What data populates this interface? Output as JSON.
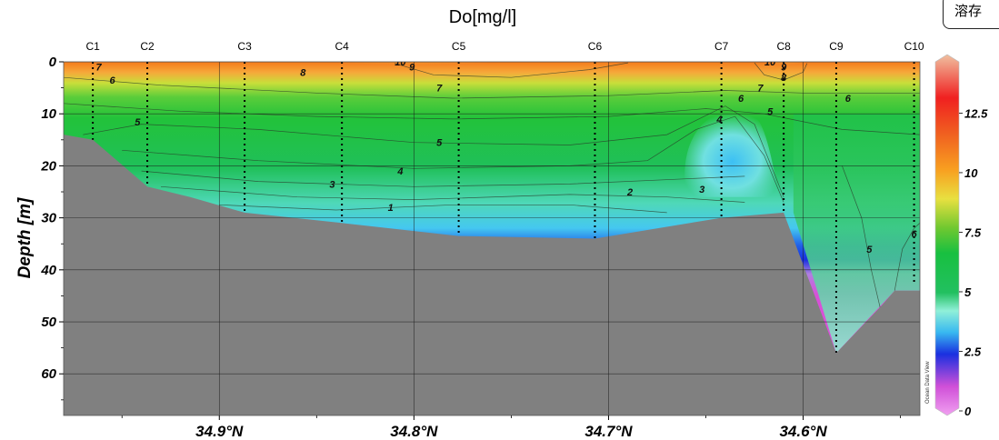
{
  "chart_data": {
    "type": "heatmap",
    "title": "Do[mg/l]",
    "xlabel": "",
    "ylabel": "Depth [m]",
    "x_ticks": [
      "34.9°N",
      "34.8°N",
      "34.7°N",
      "34.6°N"
    ],
    "x_tick_values": [
      34.9,
      34.8,
      34.7,
      34.6
    ],
    "xlim": [
      34.98,
      34.54
    ],
    "y_ticks": [
      "0",
      "10",
      "20",
      "30",
      "40",
      "50",
      "60"
    ],
    "y_tick_values": [
      0,
      10,
      20,
      30,
      40,
      50,
      60
    ],
    "ylim": [
      0,
      68
    ],
    "y_inverted": true,
    "grid": true,
    "stations": [
      {
        "name": "C1",
        "lat": 34.965,
        "depth": 15
      },
      {
        "name": "C2",
        "lat": 34.937,
        "depth": 24
      },
      {
        "name": "C3",
        "lat": 34.887,
        "depth": 29
      },
      {
        "name": "C4",
        "lat": 34.837,
        "depth": 31
      },
      {
        "name": "C5",
        "lat": 34.777,
        "depth": 33
      },
      {
        "name": "C6",
        "lat": 34.707,
        "depth": 34
      },
      {
        "name": "C7",
        "lat": 34.642,
        "depth": 30
      },
      {
        "name": "C8",
        "lat": 34.61,
        "depth": 29
      },
      {
        "name": "C9",
        "lat": 34.583,
        "depth": 56
      },
      {
        "name": "C10",
        "lat": 34.543,
        "depth": 43
      }
    ],
    "bottom_profile": [
      [
        34.98,
        14
      ],
      [
        34.965,
        15
      ],
      [
        34.937,
        24
      ],
      [
        34.915,
        26
      ],
      [
        34.887,
        29
      ],
      [
        34.837,
        31
      ],
      [
        34.777,
        33.5
      ],
      [
        34.707,
        34
      ],
      [
        34.642,
        30
      ],
      [
        34.61,
        29
      ],
      [
        34.583,
        56
      ],
      [
        34.56,
        47
      ],
      [
        34.553,
        44
      ],
      [
        34.54,
        44
      ]
    ],
    "contour_labels": [
      {
        "text": "7",
        "lat": 34.962,
        "depth": 1
      },
      {
        "text": "6",
        "lat": 34.955,
        "depth": 3.5
      },
      {
        "text": "8",
        "lat": 34.857,
        "depth": 2
      },
      {
        "text": "10",
        "lat": 34.807,
        "depth": 0
      },
      {
        "text": "9",
        "lat": 34.801,
        "depth": 1
      },
      {
        "text": "7",
        "lat": 34.787,
        "depth": 5
      },
      {
        "text": "5",
        "lat": 34.942,
        "depth": 11.5
      },
      {
        "text": "5",
        "lat": 34.787,
        "depth": 15.5
      },
      {
        "text": "4",
        "lat": 34.807,
        "depth": 21
      },
      {
        "text": "3",
        "lat": 34.842,
        "depth": 23.5
      },
      {
        "text": "1",
        "lat": 34.812,
        "depth": 28
      },
      {
        "text": "2",
        "lat": 34.689,
        "depth": 25
      },
      {
        "text": "3",
        "lat": 34.652,
        "depth": 24.5
      },
      {
        "text": "4",
        "lat": 34.643,
        "depth": 11
      },
      {
        "text": "10",
        "lat": 34.617,
        "depth": 0
      },
      {
        "text": "9",
        "lat": 34.61,
        "depth": 1
      },
      {
        "text": "8",
        "lat": 34.61,
        "depth": 3
      },
      {
        "text": "7",
        "lat": 34.622,
        "depth": 5
      },
      {
        "text": "6",
        "lat": 34.632,
        "depth": 7
      },
      {
        "text": "5",
        "lat": 34.617,
        "depth": 9.5
      },
      {
        "text": "6",
        "lat": 34.577,
        "depth": 7
      },
      {
        "text": "5",
        "lat": 34.566,
        "depth": 36
      },
      {
        "text": "6",
        "lat": 34.543,
        "depth": 33
      }
    ],
    "colorbar": {
      "range": [
        0,
        14.5
      ],
      "ticks": [
        "0",
        "2.5",
        "5",
        "7.5",
        "10",
        "12.5"
      ],
      "tick_values": [
        0,
        2.5,
        5,
        7.5,
        10,
        12.5
      ],
      "colors": [
        "#e060e0",
        "#c040d8",
        "#2040e8",
        "#38c8f0",
        "#8ef0d8",
        "#22c05a",
        "#18c040",
        "#50c030",
        "#a8d838",
        "#f0e040",
        "#f8a020",
        "#f07020",
        "#f02020",
        "#e81828"
      ]
    },
    "watermark": "Ocean Data View"
  },
  "corner_label": "溶存"
}
